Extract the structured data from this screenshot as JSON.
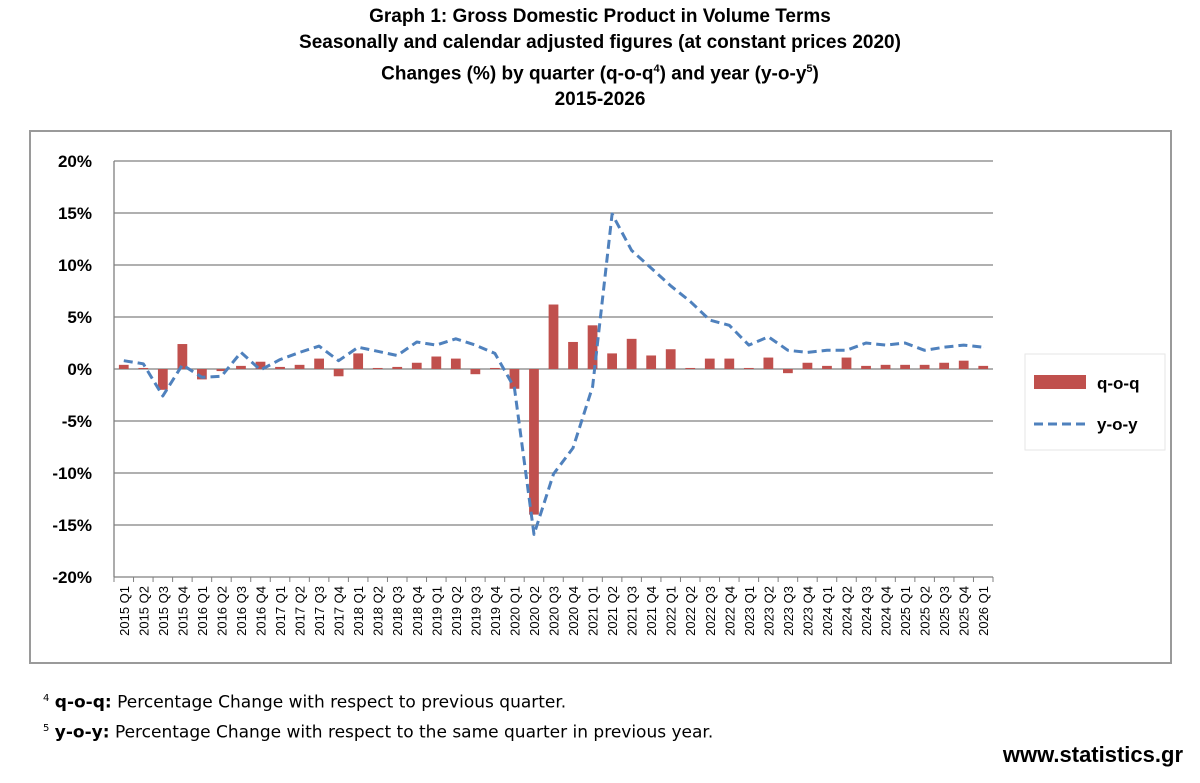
{
  "title": {
    "line1": "Graph 1: Gross Domestic Product in Volume Terms",
    "line2": "Seasonally and calendar adjusted figures (at constant prices 2020)",
    "line3_pre": "Changes (%) by quarter (q-o-q",
    "line3_sup1": "4",
    "line3_mid": ") and year (y-o-y",
    "line3_sup2": "5",
    "line3_post": ")",
    "line4": "2015-2026"
  },
  "footnotes": [
    {
      "num": "4",
      "term": "q-o-q:",
      "text": " Percentage Change with respect to previous quarter."
    },
    {
      "num": "5",
      "term": "y-o-y:",
      "text": " Percentage Change with respect to the same quarter in previous year."
    }
  ],
  "website": "www.statistics.gr",
  "colors": {
    "bar": "#c0504d",
    "line": "#4f81bd",
    "grid": "#808080",
    "frame": "#9a9a9a"
  },
  "chart_data": {
    "type": "bar",
    "ylim": [
      -20,
      20
    ],
    "y_ticks": [
      20,
      15,
      10,
      5,
      0,
      -5,
      -10,
      -15,
      -20
    ],
    "y_tick_labels": [
      "20%",
      "15%",
      "10%",
      "5%",
      "0%",
      "-5%",
      "-10%",
      "-15%",
      "-20%"
    ],
    "grid": true,
    "legend_position": "right",
    "categories": [
      "2015 Q1",
      "2015 Q2",
      "2015 Q3",
      "2015 Q4",
      "2016 Q1",
      "2016 Q2",
      "2016 Q3",
      "2016 Q4",
      "2017 Q1",
      "2017 Q2",
      "2017 Q3",
      "2017 Q4",
      "2018 Q1",
      "2018 Q2",
      "2018 Q3",
      "2018 Q4",
      "2019 Q1",
      "2019 Q2",
      "2019 Q3",
      "2019 Q4",
      "2020 Q1",
      "2020 Q2",
      "2020 Q3",
      "2020 Q4",
      "2021 Q1",
      "2021 Q2",
      "2021 Q3",
      "2021 Q4",
      "2022 Q1",
      "2022 Q2",
      "2022 Q3",
      "2022 Q4",
      "2023 Q1",
      "2023 Q2",
      "2023 Q3",
      "2023 Q4",
      "2024 Q1",
      "2024 Q2",
      "2024 Q3",
      "2024 Q4",
      "2025 Q1",
      "2025 Q2",
      "2025 Q3",
      "2025 Q4",
      "2026 Q1"
    ],
    "series": [
      {
        "name": "q-o-q",
        "type": "bar",
        "values": [
          0.4,
          0.1,
          -2.0,
          2.4,
          -1.0,
          -0.2,
          0.3,
          0.7,
          0.2,
          0.4,
          1.0,
          -0.7,
          1.5,
          0.1,
          0.2,
          0.6,
          1.2,
          1.0,
          -0.5,
          0.1,
          -1.9,
          -14.0,
          6.2,
          2.6,
          4.2,
          1.5,
          2.9,
          1.3,
          1.9,
          0.1,
          1.0,
          1.0,
          0.1,
          1.1,
          -0.4,
          0.6,
          0.3,
          1.1,
          0.3,
          0.4,
          0.4,
          0.4,
          0.6,
          0.8,
          0.3
        ]
      },
      {
        "name": "y-o-y",
        "type": "line",
        "values": [
          0.8,
          0.5,
          -2.6,
          0.4,
          -0.8,
          -0.7,
          1.6,
          -0.1,
          0.9,
          1.6,
          2.2,
          0.8,
          2.1,
          1.7,
          1.3,
          2.6,
          2.3,
          2.9,
          2.3,
          1.5,
          -1.8,
          -15.9,
          -10.1,
          -7.6,
          -1.7,
          14.9,
          11.4,
          9.7,
          8.0,
          6.5,
          4.7,
          4.2,
          2.3,
          3.1,
          1.8,
          1.6,
          1.8,
          1.8,
          2.5,
          2.3,
          2.5,
          1.8,
          2.1,
          2.3,
          2.1
        ]
      }
    ]
  }
}
